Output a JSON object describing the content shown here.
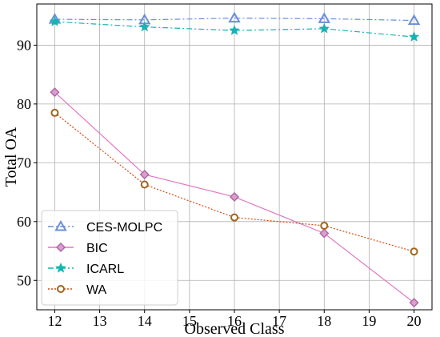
{
  "chart_data": {
    "type": "line",
    "xlabel": "Observed Class",
    "ylabel": "Total OA",
    "xlim": [
      11.6,
      20.4
    ],
    "ylim": [
      45,
      97
    ],
    "x_ticks": [
      12,
      13,
      14,
      15,
      16,
      17,
      18,
      19,
      20
    ],
    "y_ticks": [
      50,
      60,
      70,
      80,
      90
    ],
    "grid": true,
    "legend_position": "lower-left",
    "x": [
      12,
      14,
      16,
      18,
      20
    ],
    "series": [
      {
        "name": "CES-MOLPC",
        "values": [
          94.4,
          94.3,
          94.6,
          94.5,
          94.2
        ],
        "color": "#6a8fd8",
        "marker": "triangle",
        "dash": "7 3 2 3"
      },
      {
        "name": "BIC",
        "values": [
          82.0,
          68.0,
          64.2,
          58.0,
          46.2
        ],
        "color": "#e377c2",
        "marker": "diamond",
        "dash": ""
      },
      {
        "name": "ICARL",
        "values": [
          94.0,
          93.1,
          92.5,
          92.8,
          91.4
        ],
        "color": "#17b2b2",
        "marker": "star",
        "dash": "7 3 2 3"
      },
      {
        "name": "WA",
        "values": [
          78.5,
          66.3,
          60.7,
          59.3,
          54.9
        ],
        "color": "#d9480f",
        "marker": "circle",
        "dash": "2 2",
        "marker_color": "#a0651a"
      }
    ]
  }
}
